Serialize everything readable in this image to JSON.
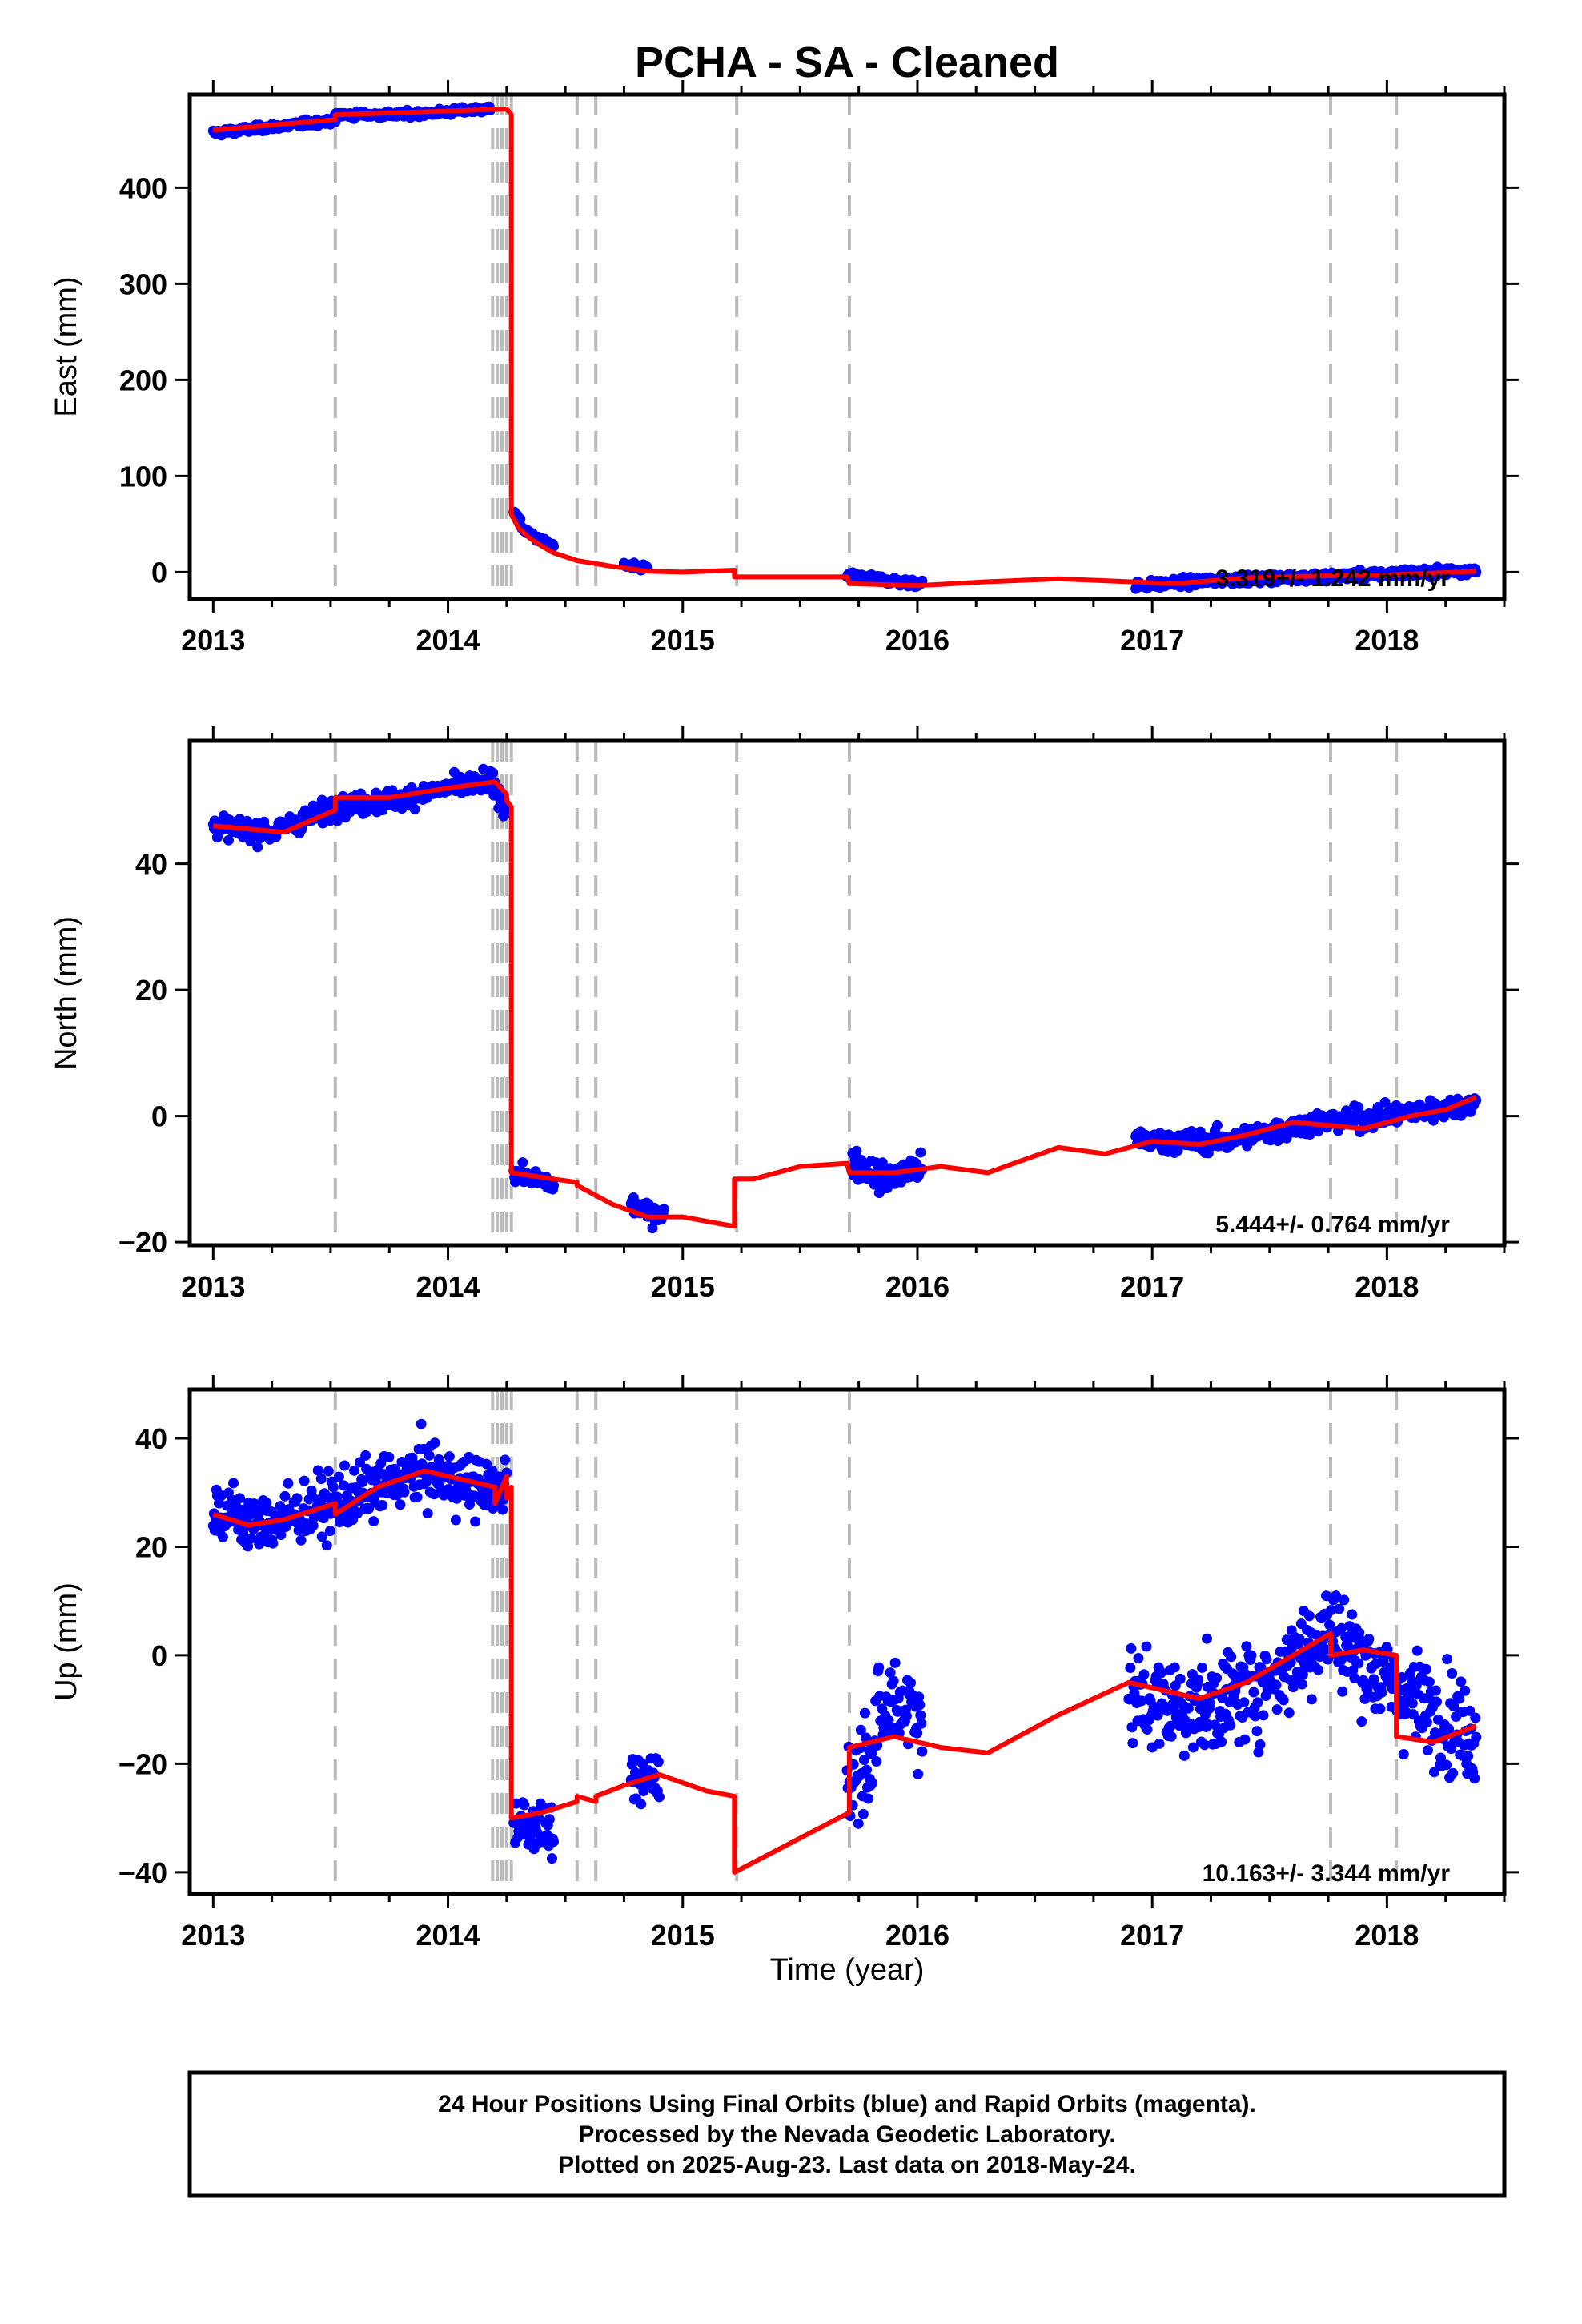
{
  "title": "PCHA  - SA - Cleaned",
  "xlabel": "Time (year)",
  "footer": {
    "line1": "24 Hour Positions Using Final Orbits (blue) and Rapid Orbits (magenta).",
    "line2": "Processed by the Nevada Geodetic Laboratory.",
    "line3": "Plotted on 2025-Aug-23. Last data on 2018-May-24."
  },
  "colors": {
    "data_points": "#0000ff",
    "model_line": "#ff0000",
    "event_lines": "#bbbbbb",
    "axes": "#000000"
  },
  "chart_data": [
    {
      "type": "scatter",
      "panel": "east",
      "ylabel": "East (mm)",
      "xlim": [
        2012.9,
        2018.5
      ],
      "ylim": [
        -28,
        497
      ],
      "xticks": [
        "2013",
        "2014",
        "2015",
        "2016",
        "2017",
        "2018"
      ],
      "yticks": [
        "0",
        "100",
        "200",
        "300",
        "400"
      ],
      "rate_label": "3.319+/- 1.242 mm/yr",
      "event_lines": [
        2013.52,
        2014.19,
        2014.21,
        2014.23,
        2014.25,
        2014.27,
        2014.55,
        2014.63,
        2015.23,
        2015.71,
        2017.76,
        2018.04
      ],
      "series": [
        {
          "name": "Final Orbits",
          "kind": "points",
          "segments": [
            {
              "x": [
                2013.0,
                2013.2,
                2013.4,
                2013.52
              ],
              "y": [
                457,
                462,
                467,
                470
              ],
              "noise": 3
            },
            {
              "x": [
                2013.52,
                2013.8,
                2014.0,
                2014.18
              ],
              "y": [
                476,
                476,
                479,
                482
              ],
              "noise": 3
            },
            {
              "x": [
                2014.28,
                2014.32,
                2014.38,
                2014.45
              ],
              "y": [
                65,
                45,
                35,
                27
              ],
              "noise": 3
            },
            {
              "x": [
                2014.75,
                2014.85
              ],
              "y": [
                7,
                4
              ],
              "noise": 3
            },
            {
              "x": [
                2015.7,
                2016.02
              ],
              "y": [
                -4,
                -12
              ],
              "noise": 4
            },
            {
              "x": [
                2016.93,
                2017.3,
                2017.8,
                2018.38
              ],
              "y": [
                -14,
                -8,
                -4,
                2
              ],
              "noise": 4
            }
          ]
        },
        {
          "name": "Model",
          "kind": "line",
          "x": [
            2013.0,
            2013.52,
            2013.52,
            2014.25,
            2014.25,
            2014.27,
            2014.27,
            2014.3,
            2014.35,
            2014.4,
            2014.45,
            2014.55,
            2014.7,
            2014.85,
            2015.0,
            2015.22,
            2015.22,
            2015.5,
            2015.7,
            2015.71,
            2016.0,
            2016.3,
            2016.6,
            2016.9,
            2017.1,
            2017.4,
            2017.7,
            2018.0,
            2018.2,
            2018.38
          ],
          "y": [
            460,
            471,
            476,
            482,
            482,
            476,
            60,
            46,
            35,
            27,
            20,
            12,
            6,
            1,
            0,
            2,
            -5,
            -5,
            -5,
            -12,
            -14,
            -10,
            -7,
            -10,
            -12,
            -6,
            -4,
            -3,
            -1,
            1
          ]
        }
      ]
    },
    {
      "type": "scatter",
      "panel": "north",
      "ylabel": "North (mm)",
      "xlim": [
        2012.9,
        2018.5
      ],
      "ylim": [
        -20.5,
        59.5
      ],
      "xticks": [
        "2013",
        "2014",
        "2015",
        "2016",
        "2017",
        "2018"
      ],
      "yticks": [
        "-20",
        "0",
        "20",
        "40"
      ],
      "rate_label": "5.444+/- 0.764 mm/yr",
      "event_lines": [
        2013.52,
        2014.19,
        2014.21,
        2014.23,
        2014.25,
        2014.27,
        2014.55,
        2014.63,
        2015.23,
        2015.71,
        2017.76,
        2018.04
      ],
      "series": [
        {
          "name": "Final Orbits",
          "kind": "points",
          "segments": [
            {
              "x": [
                2013.0,
                2013.25,
                2013.52,
                2013.75,
                2014.0,
                2014.18,
                2014.25
              ],
              "y": [
                46,
                45,
                49,
                50,
                52,
                53,
                49
              ],
              "noise": 1.5
            },
            {
              "x": [
                2014.28,
                2014.45
              ],
              "y": [
                -9,
                -11
              ],
              "noise": 1.2
            },
            {
              "x": [
                2014.78,
                2014.92
              ],
              "y": [
                -14,
                -16
              ],
              "noise": 1.5
            },
            {
              "x": [
                2015.72,
                2015.85,
                2016.02
              ],
              "y": [
                -7,
                -10,
                -8
              ],
              "noise": 2
            },
            {
              "x": [
                2016.93,
                2017.3,
                2017.7,
                2018.0,
                2018.38
              ],
              "y": [
                -4,
                -4,
                -1,
                0,
                2
              ],
              "noise": 1.5
            }
          ]
        },
        {
          "name": "Model",
          "kind": "line",
          "x": [
            2013.0,
            2013.15,
            2013.3,
            2013.52,
            2013.52,
            2013.75,
            2014.0,
            2014.2,
            2014.25,
            2014.25,
            2014.27,
            2014.27,
            2014.45,
            2014.55,
            2014.55,
            2014.7,
            2014.85,
            2015.0,
            2015.22,
            2015.22,
            2015.3,
            2015.5,
            2015.7,
            2015.71,
            2015.9,
            2016.1,
            2016.3,
            2016.6,
            2016.8,
            2017.0,
            2017.2,
            2017.4,
            2017.6,
            2017.76,
            2017.9,
            2018.1,
            2018.25,
            2018.38
          ],
          "y": [
            46,
            45.5,
            45,
            48.5,
            50.5,
            50.5,
            52,
            53,
            51,
            50,
            49,
            -9,
            -10,
            -10.5,
            -11,
            -14,
            -16,
            -16,
            -17.5,
            -10,
            -10,
            -8,
            -7.5,
            -9,
            -9,
            -8,
            -9,
            -5,
            -6,
            -4,
            -4.5,
            -3,
            -1,
            -1.5,
            -2,
            0,
            1,
            3
          ]
        }
      ]
    },
    {
      "type": "scatter",
      "panel": "up",
      "ylabel": "Up (mm)",
      "xlim": [
        2012.9,
        2018.5
      ],
      "ylim": [
        -44,
        49
      ],
      "xticks": [
        "2013",
        "2014",
        "2015",
        "2016",
        "2017",
        "2018"
      ],
      "yticks": [
        "-40",
        "-20",
        "0",
        "20",
        "40"
      ],
      "rate_label": "10.163+/- 3.344 mm/yr",
      "event_lines": [
        2013.52,
        2014.19,
        2014.21,
        2014.23,
        2014.25,
        2014.27,
        2014.55,
        2014.63,
        2015.23,
        2015.71,
        2017.76,
        2018.04
      ],
      "series": [
        {
          "name": "Final Orbits",
          "kind": "points",
          "segments": [
            {
              "x": [
                2013.0,
                2013.2,
                2013.52,
                2013.9,
                2014.2,
                2014.25
              ],
              "y": [
                27,
                24,
                28,
                34,
                30,
                32
              ],
              "noise": 5
            },
            {
              "x": [
                2014.28,
                2014.45
              ],
              "y": [
                -30,
                -33
              ],
              "noise": 4
            },
            {
              "x": [
                2014.78,
                2014.9
              ],
              "y": [
                -25,
                -21
              ],
              "noise": 4
            },
            {
              "x": [
                2015.7,
                2015.9,
                2016.02
              ],
              "y": [
                -25,
                -8,
                -10
              ],
              "noise": 9
            },
            {
              "x": [
                2016.9,
                2017.2,
                2017.5,
                2017.75,
                2018.0,
                2018.38
              ],
              "y": [
                -8,
                -10,
                -5,
                5,
                -5,
                -15
              ],
              "noise": 8
            }
          ]
        },
        {
          "name": "Model",
          "kind": "line",
          "x": [
            2013.0,
            2013.15,
            2013.3,
            2013.52,
            2013.52,
            2013.7,
            2013.9,
            2014.1,
            2014.2,
            2014.2,
            2014.25,
            2014.25,
            2014.27,
            2014.27,
            2014.4,
            2014.55,
            2014.55,
            2014.63,
            2014.63,
            2014.75,
            2014.9,
            2015.1,
            2015.22,
            2015.22,
            2015.71,
            2015.71,
            2015.9,
            2016.1,
            2016.3,
            2016.6,
            2016.9,
            2017.0,
            2017.2,
            2017.4,
            2017.76,
            2017.76,
            2017.9,
            2018.04,
            2018.04,
            2018.2,
            2018.38
          ],
          "y": [
            26,
            24,
            25,
            28,
            26,
            31,
            34,
            32,
            31,
            28,
            33,
            29,
            31,
            -30,
            -29,
            -27,
            -26,
            -27,
            -26,
            -24,
            -22,
            -25,
            -26,
            -40,
            -29,
            -17,
            -15,
            -17,
            -18,
            -11,
            -5,
            -6,
            -8,
            -5,
            4,
            0,
            1,
            0,
            -15,
            -16,
            -13
          ]
        }
      ]
    }
  ]
}
